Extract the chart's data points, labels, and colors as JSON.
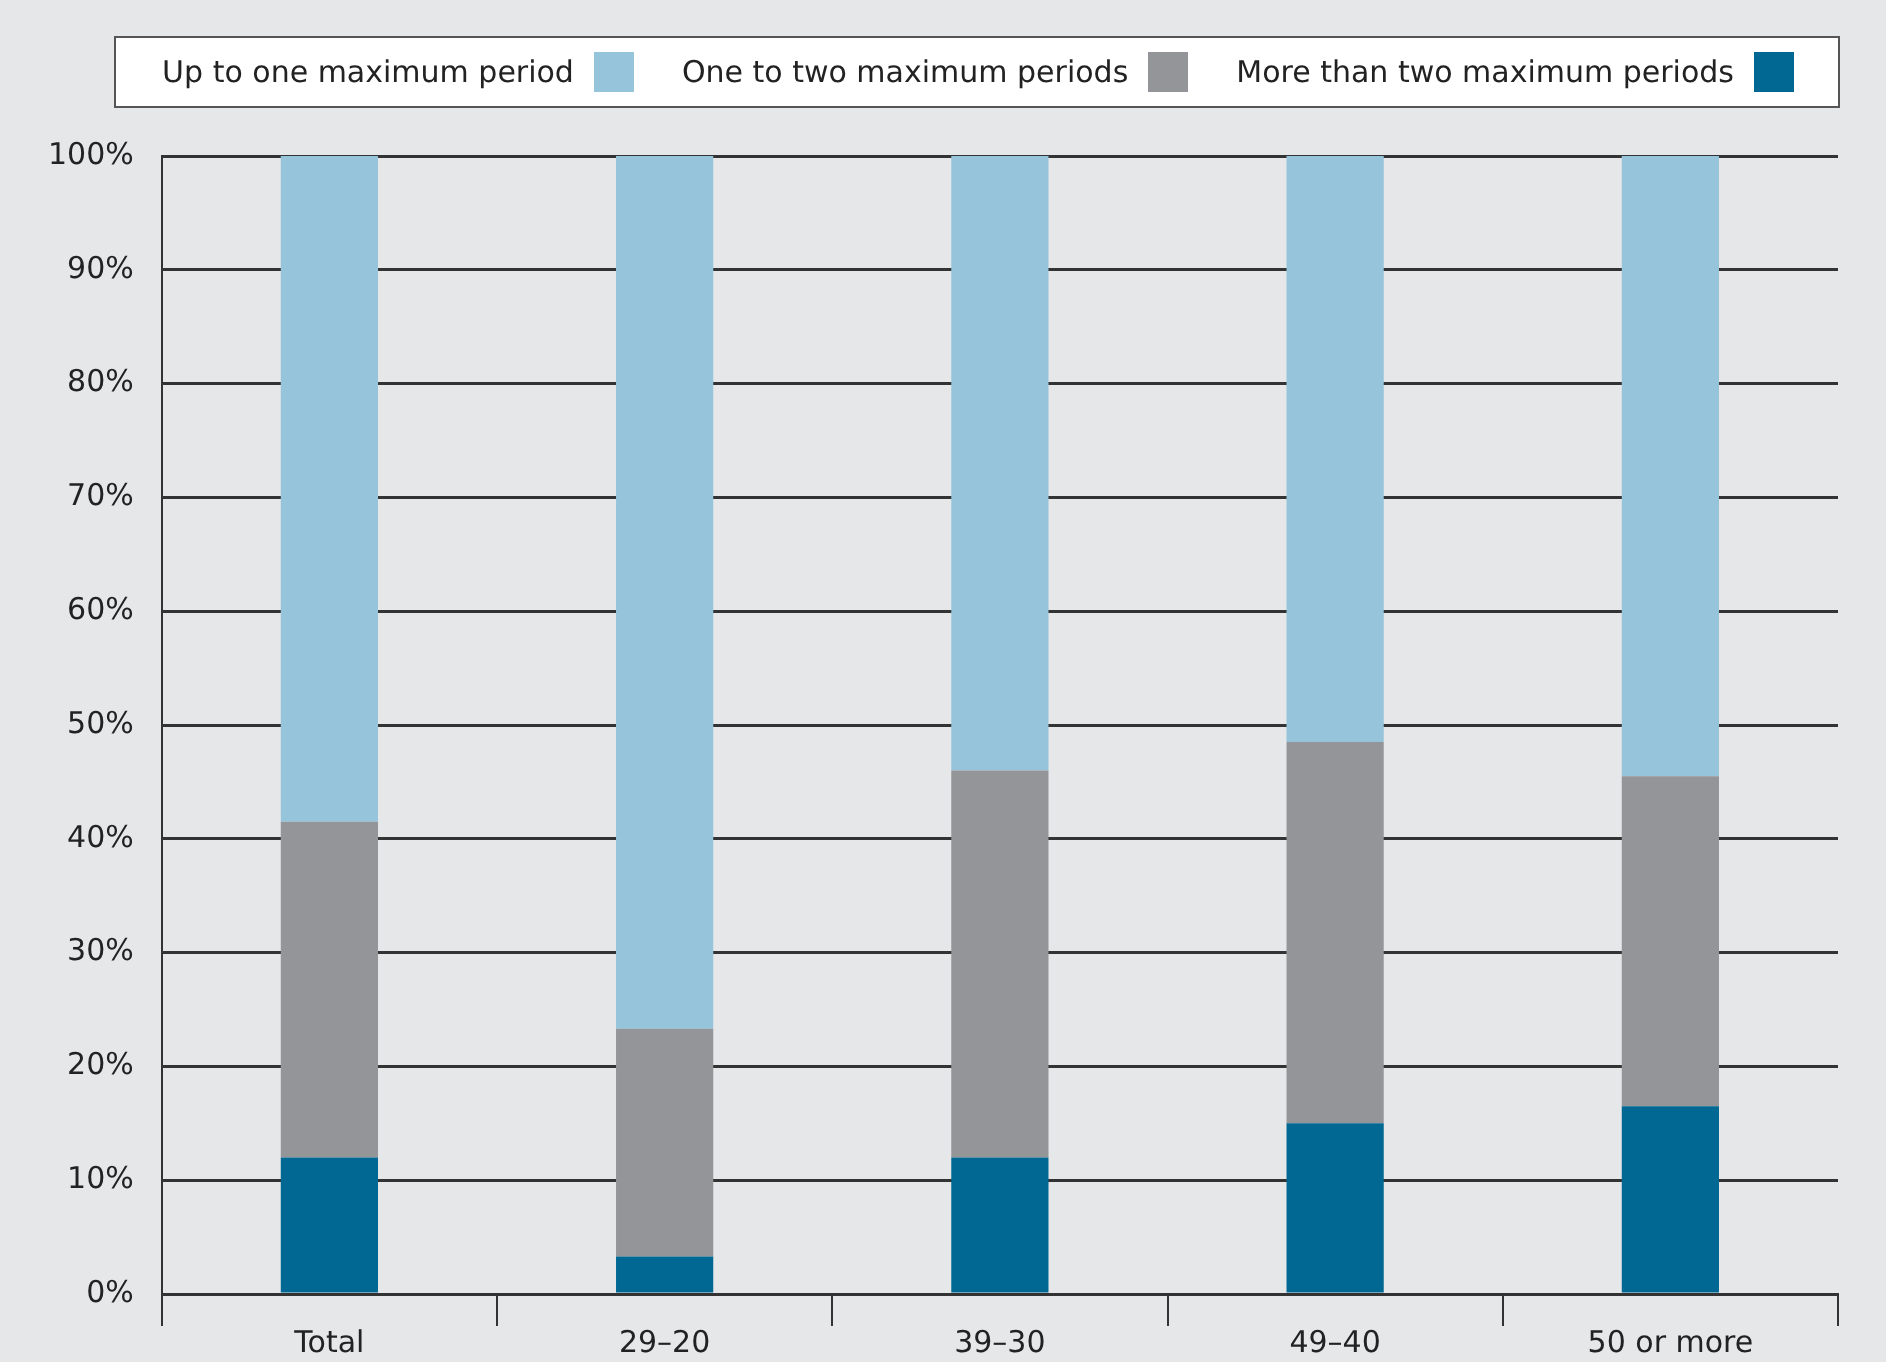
{
  "chart_data": {
    "type": "bar",
    "stacked": true,
    "categories": [
      "Total",
      "29–20",
      "39–30",
      "49–40",
      "50 or more"
    ],
    "series": [
      {
        "name": "More than two maximum periods",
        "color": "#006892",
        "values": [
          12,
          3.3,
          12,
          15,
          16.5
        ]
      },
      {
        "name": "One to two maximum periods",
        "color": "#939598",
        "values": [
          29.5,
          20,
          34,
          33.5,
          29
        ]
      },
      {
        "name": "Up to one maximum period",
        "color": "#95c4db",
        "values": [
          58.5,
          76.7,
          54,
          51.5,
          54.5
        ]
      }
    ],
    "ylim": [
      0,
      100
    ],
    "yticks": [
      {
        "value": 0,
        "label": "0%"
      },
      {
        "value": 10,
        "label": "10%"
      },
      {
        "value": 20,
        "label": "20%"
      },
      {
        "value": 30,
        "label": "30%"
      },
      {
        "value": 40,
        "label": "40%"
      },
      {
        "value": 50,
        "label": "50%"
      },
      {
        "value": 60,
        "label": "60%"
      },
      {
        "value": 70,
        "label": "70%"
      },
      {
        "value": 80,
        "label": "80%"
      },
      {
        "value": 90,
        "label": "90%"
      },
      {
        "value": 100,
        "label": "100%"
      }
    ],
    "grid": "y",
    "legend": "top"
  }
}
